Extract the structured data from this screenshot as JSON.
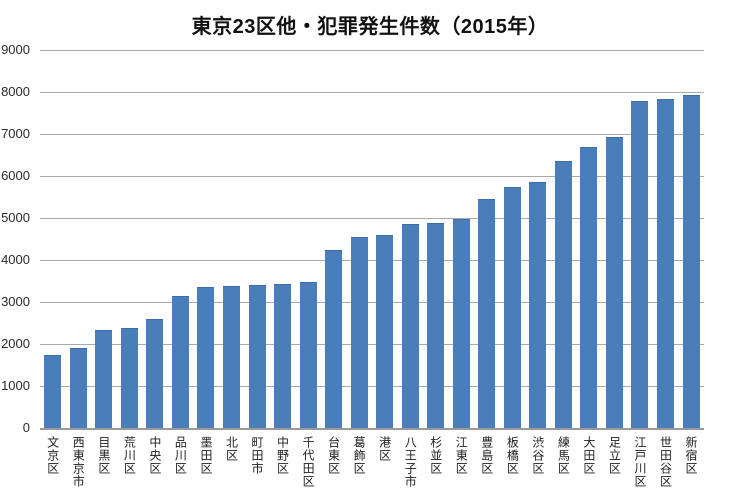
{
  "title": "東京23区他・犯罪発生件数（2015年）",
  "colors": {
    "bar_fill": "#4a7ebb",
    "bar_edge": "#3c6da8",
    "gridline": "#a9a9a9",
    "axis_line": "#9a9a9a",
    "title_text": "#111111",
    "tick_text": "#2b2b2b",
    "background": "#fefefe"
  },
  "chart_data": {
    "type": "bar",
    "title": "東京23区他・犯罪発生件数（2015年）",
    "xlabel": "",
    "ylabel": "",
    "ylim": [
      0,
      9000
    ],
    "yticks": [
      0,
      1000,
      2000,
      3000,
      4000,
      5000,
      6000,
      7000,
      8000,
      9000
    ],
    "grid": true,
    "legend": false,
    "categories": [
      "文京区",
      "西東京市",
      "目黒区",
      "荒川区",
      "中央区",
      "品川区",
      "墨田区",
      "北区",
      "町田市",
      "中野区",
      "千代田区",
      "台東区",
      "葛飾区",
      "港区",
      "八王子市",
      "杉並区",
      "江東区",
      "豊島区",
      "板橋区",
      "渋谷区",
      "練馬区",
      "大田区",
      "足立区",
      "江戸川区",
      "世田谷区",
      "新宿区"
    ],
    "values": [
      1730,
      1910,
      2340,
      2390,
      2600,
      3150,
      3350,
      3380,
      3400,
      3420,
      3480,
      4250,
      4550,
      4600,
      4850,
      4880,
      4970,
      5450,
      5750,
      5860,
      6350,
      6690,
      6930,
      7780,
      7830,
      7930
    ]
  }
}
